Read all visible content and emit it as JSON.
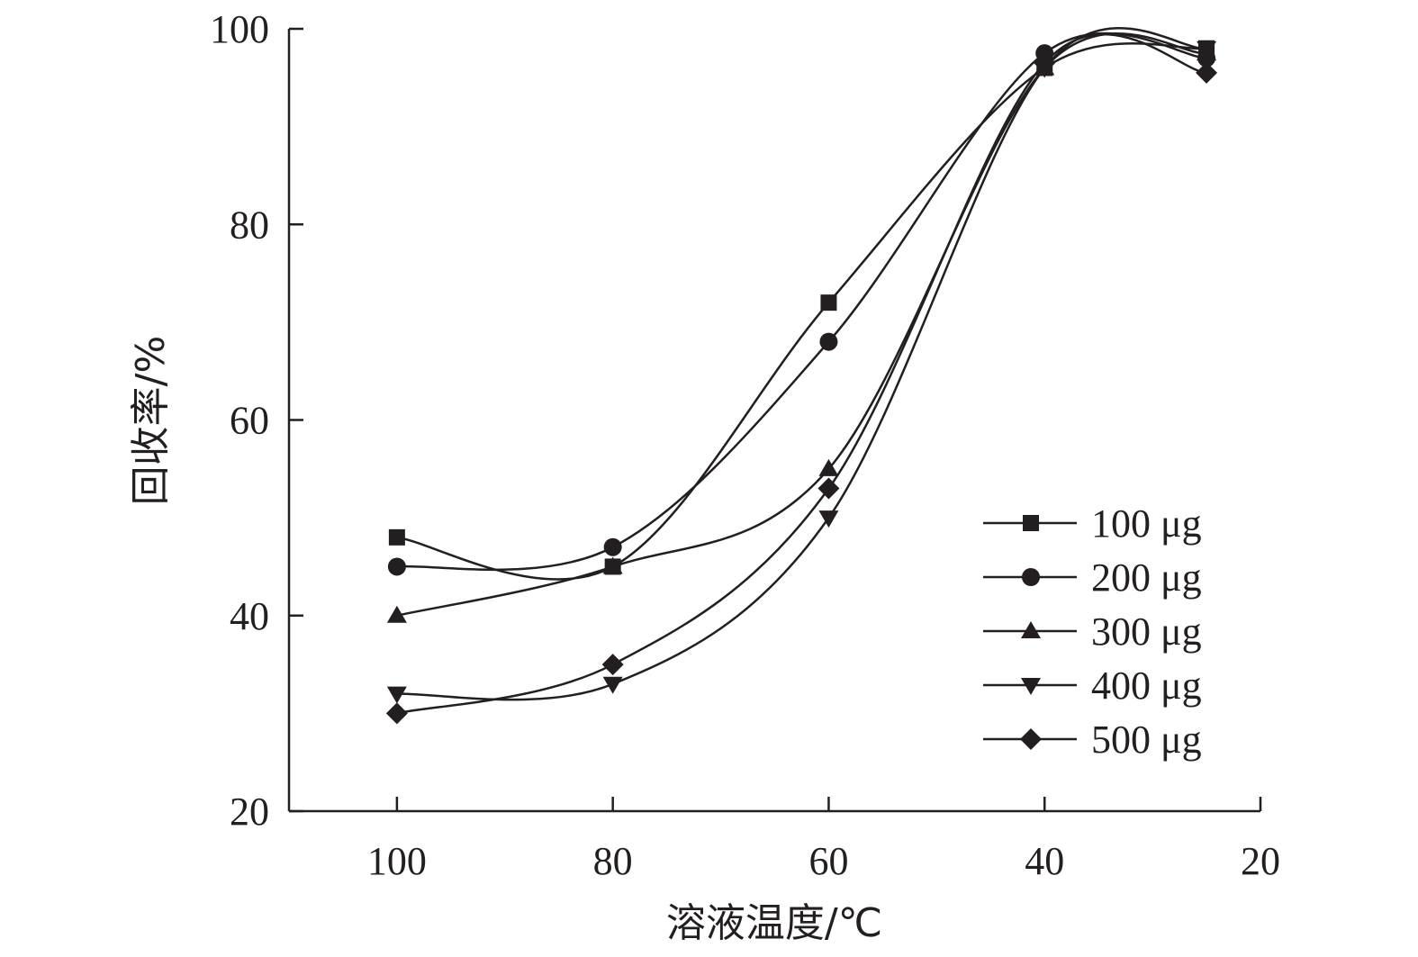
{
  "chart_data": {
    "type": "line",
    "xlabel": "溶液温度/℃",
    "ylabel": "回收率/%",
    "xlim": [
      110,
      20
    ],
    "ylim": [
      20,
      100
    ],
    "x_ticks": [
      100,
      80,
      60,
      40,
      20
    ],
    "y_ticks": [
      20,
      40,
      60,
      80,
      100
    ],
    "x": [
      100,
      80,
      60,
      40,
      25
    ],
    "grid": false,
    "legend_position": "bottom-right",
    "marker_color": "#231f20",
    "series": [
      {
        "name": "100 μg",
        "marker": "square",
        "values": [
          48,
          45,
          72,
          96,
          98
        ]
      },
      {
        "name": "200 μg",
        "marker": "circle",
        "values": [
          45,
          47,
          68,
          97.5,
          97
        ]
      },
      {
        "name": "300 μg",
        "marker": "triangle-up",
        "values": [
          40,
          45,
          55,
          96,
          97.5
        ]
      },
      {
        "name": "400 μg",
        "marker": "triangle-down",
        "values": [
          32,
          33,
          50,
          96,
          98
        ]
      },
      {
        "name": "500 μg",
        "marker": "diamond",
        "values": [
          30,
          35,
          53,
          96.5,
          95.5
        ]
      }
    ]
  }
}
